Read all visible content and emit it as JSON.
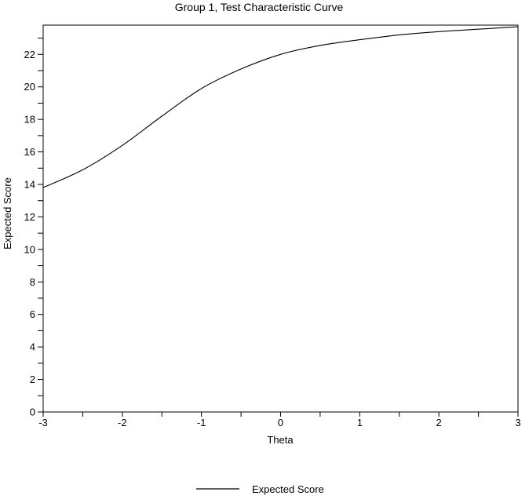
{
  "colors": {
    "background": "#ffffff",
    "foreground": "#000000"
  },
  "chart_data": {
    "type": "line",
    "title": "Group 1, Test Characteristic Curve",
    "xlabel": "Theta",
    "ylabel": "Expected Score",
    "xlim": [
      -3,
      3
    ],
    "ylim": [
      0,
      23.8
    ],
    "x_label_step": 1,
    "x_tick_step": 0.5,
    "y_label_step": 2,
    "y_tick_step": 1,
    "grid": false,
    "legend": {
      "position": "bottom",
      "entries": [
        {
          "label": "Expected Score",
          "style": "line",
          "color": "#000000"
        }
      ]
    },
    "series": [
      {
        "name": "Expected Score",
        "x": [
          -3,
          -2.5,
          -2,
          -1.5,
          -1,
          -0.5,
          0,
          0.5,
          1,
          1.5,
          2,
          2.5,
          3
        ],
        "y": [
          13.8,
          14.9,
          16.4,
          18.2,
          19.9,
          21.1,
          22.0,
          22.55,
          22.9,
          23.2,
          23.4,
          23.55,
          23.7
        ]
      }
    ]
  }
}
